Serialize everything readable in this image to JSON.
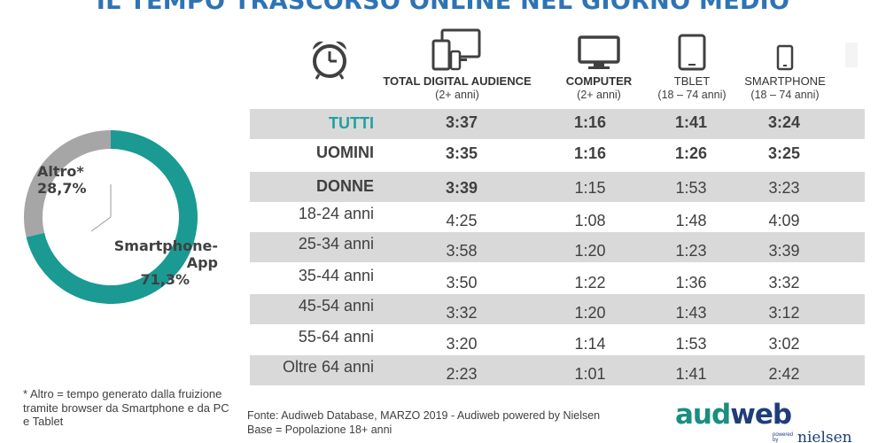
{
  "title": "IL TEMPO TRASCORSO ONLINE NEL GIORNO MEDIO",
  "colors": {
    "teal": "#1a9a93",
    "gray": "#a6a6a6",
    "title": "#2e74b5",
    "row_shade": "#d9d9d9"
  },
  "columns": [
    {
      "name": "TOTAL DIGITAL AUDIENCE",
      "sub": "(2+ anni)",
      "icon": "multi-device-icon"
    },
    {
      "name": "COMPUTER",
      "sub": "(2+ anni)",
      "icon": "monitor-icon"
    },
    {
      "name": "TBLET",
      "sub": "(18 – 74 anni)",
      "icon": "tablet-icon"
    },
    {
      "name": "SMARTPHONE",
      "sub": "(18 – 74 anni)",
      "icon": "smartphone-icon"
    }
  ],
  "chart_data": [
    {
      "type": "pie",
      "variant": "donut",
      "labels": [
        "Smartphone-App",
        "Altro*"
      ],
      "display_labels": [
        "71,3%",
        "28,7%"
      ],
      "values": [
        71.3,
        28.7
      ],
      "colors": [
        "#1a9a93",
        "#a6a6a6"
      ]
    },
    {
      "type": "table",
      "columns": [
        "TOTAL DIGITAL AUDIENCE (2+ anni)",
        "COMPUTER (2+ anni)",
        "TBLET (18 – 74 anni)",
        "SMARTPHONE (18 – 74 anni)"
      ],
      "rows": [
        {
          "label": "TUTTI",
          "values": [
            "3:37",
            "1:16",
            "1:41",
            "3:24"
          ]
        },
        {
          "label": "UOMINI",
          "values": [
            "3:35",
            "1:16",
            "1:26",
            "3:25"
          ]
        },
        {
          "label": "DONNE",
          "values": [
            "3:39",
            "1:15",
            "1:53",
            "3:23"
          ]
        },
        {
          "label": "18-24 anni",
          "values": [
            "4:25",
            "1:08",
            "1:48",
            "4:09"
          ]
        },
        {
          "label": "25-34 anni",
          "values": [
            "3:58",
            "1:20",
            "1:23",
            "3:39"
          ]
        },
        {
          "label": "35-44 anni",
          "values": [
            "3:50",
            "1:22",
            "1:36",
            "3:32"
          ]
        },
        {
          "label": "45-54 anni",
          "values": [
            "3:32",
            "1:20",
            "1:43",
            "3:12"
          ]
        },
        {
          "label": "55-64 anni",
          "values": [
            "3:20",
            "1:14",
            "1:53",
            "3:02"
          ]
        },
        {
          "label": "Oltre 64 anni",
          "values": [
            "2:23",
            "1:01",
            "1:41",
            "2:42"
          ]
        }
      ]
    }
  ],
  "footnote": "* Altro = tempo generato dalla fruizione tramite browser da Smartphone e da PC e Tablet",
  "source_line1": "Fonte: Audiweb Database, MARZO 2019 - Audiweb powered by Nielsen",
  "source_line2": "Base = Popolazione 18+ anni",
  "logo": {
    "audi": "aud",
    "web": "web",
    "powered": "powered by",
    "nielsen": "nielsen"
  }
}
